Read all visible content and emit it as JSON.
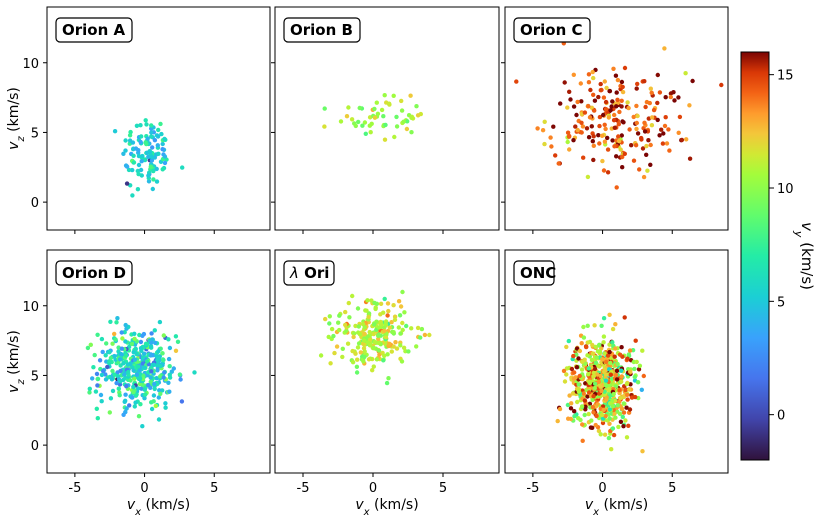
{
  "chart_data": {
    "type": "scatter",
    "figure_title": "",
    "xlabel": "v_x (km/s)",
    "ylabel": "v_z (km/s)",
    "xlim": [
      -7,
      9
    ],
    "ylim_top_row": [
      -2,
      14
    ],
    "ylim_bottom_row": [
      -2,
      14
    ],
    "x_ticks": [
      -5,
      0,
      5
    ],
    "y_ticks": [
      0,
      5,
      10
    ],
    "x_tick_labels": [
      "-5",
      "0",
      "5"
    ],
    "y_tick_labels": [
      "0",
      "5",
      "10"
    ],
    "colorbar": {
      "label": "v_y (km/s)",
      "range": [
        -2,
        16
      ],
      "ticks": [
        0,
        5,
        10,
        15
      ],
      "tick_labels": [
        "0",
        "5",
        "10",
        "15"
      ],
      "colormap": "turbo"
    },
    "panels": [
      {
        "name": "Orion A",
        "center_vx": 0.2,
        "center_vz": 3.5,
        "spread_vx": 0.9,
        "spread_vz": 1.4,
        "count": 120,
        "vy_center": 5.5,
        "vy_spread": 1.5
      },
      {
        "name": "Orion B",
        "center_vx": 0.5,
        "center_vz": 6.0,
        "spread_vx": 1.6,
        "spread_vz": 0.7,
        "count": 55,
        "vy_center": 10.5,
        "vy_spread": 1.0
      },
      {
        "name": "Orion C",
        "center_vx": 1.0,
        "center_vz": 6.0,
        "spread_vx": 2.5,
        "spread_vz": 1.8,
        "count": 240,
        "vy_center": 14.5,
        "vy_spread": 1.5
      },
      {
        "name": "Orion D",
        "center_vx": -0.5,
        "center_vz": 5.5,
        "spread_vx": 1.4,
        "spread_vz": 1.5,
        "count": 420,
        "vy_center": 6.0,
        "vy_spread": 2.0
      },
      {
        "name": "λ Ori",
        "center_vx": 0.0,
        "center_vz": 8.0,
        "spread_vx": 1.4,
        "spread_vz": 1.2,
        "count": 240,
        "vy_center": 11.0,
        "vy_spread": 1.2
      },
      {
        "name": "ONC",
        "center_vx": 0.0,
        "center_vz": 4.5,
        "spread_vx": 1.2,
        "spread_vz": 1.6,
        "count": 650,
        "vy_center": 12.0,
        "vy_spread": 2.5
      }
    ]
  }
}
